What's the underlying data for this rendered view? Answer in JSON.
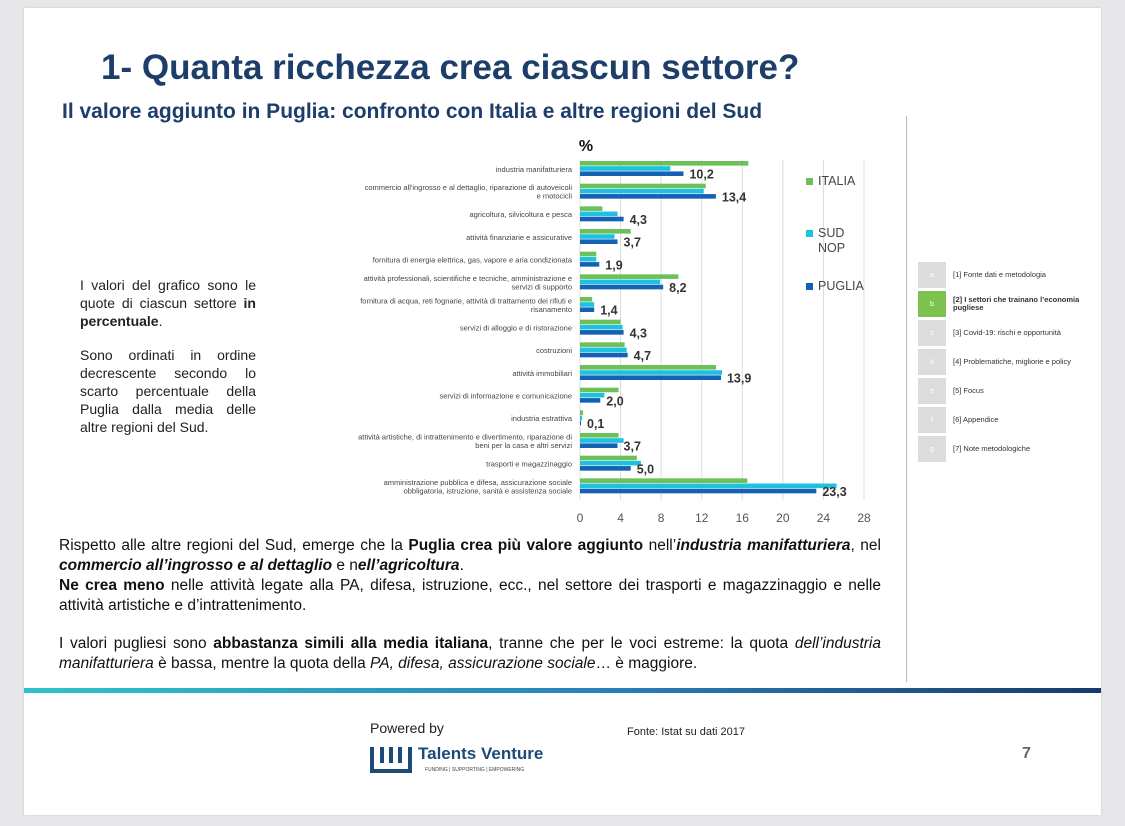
{
  "header": {
    "title": "1- Quanta ricchezza crea ciascun settore?",
    "subtitle": "Il valore aggiunto in Puglia: confronto con Italia e altre regioni del Sud"
  },
  "side_note": {
    "p1_a": "I valori del grafico sono le quote di ciascun settore ",
    "p1_b": "in percentuale",
    "p1_c": ".",
    "p2": "Sono ordinati in ordine decrescente secondo lo scarto percentuale della Puglia dalla media delle altre regioni del Sud."
  },
  "chart_data": {
    "type": "bar",
    "orientation": "horizontal",
    "unit_label": "%",
    "categories": [
      [
        "industria manifatturiera"
      ],
      [
        "commercio all'ingrosso e al dettaglio, riparazione di autoveicoli",
        "e motocicli"
      ],
      [
        "agricoltura, silvicoltura e pesca"
      ],
      [
        "attività finanziarie e assicurative"
      ],
      [
        "fornitura di energia elettrica, gas, vapore e aria condizionata"
      ],
      [
        "attività professionali, scientifiche e tecniche, amministrazione e",
        "servizi di supporto"
      ],
      [
        "fornitura di acqua, reti fognarie, attività di trattamento dei rifiuti e",
        "risanamento"
      ],
      [
        "servizi di alloggio e di ristorazione"
      ],
      [
        "costruzioni"
      ],
      [
        "attività immobiliari"
      ],
      [
        "servizi di informazione e comunicazione"
      ],
      [
        "industria estrattiva"
      ],
      [
        "attività artistiche, di intrattenimento e divertimento, riparazione di",
        "beni per la casa e altri servizi"
      ],
      [
        "trasporti e magazzinaggio"
      ],
      [
        "amministrazione pubblica e difesa, assicurazione sociale",
        "obbligatoria, istruzione, sanità e assistenza sociale"
      ]
    ],
    "series": [
      {
        "name": "ITALIA",
        "color": "#6cc05a",
        "values": [
          16.6,
          12.4,
          2.2,
          5.0,
          1.6,
          9.7,
          1.2,
          4.0,
          4.4,
          13.4,
          3.8,
          0.3,
          3.8,
          5.6,
          16.5
        ]
      },
      {
        "name": "SUD NOP",
        "color": "#1fc1e0",
        "values": [
          8.9,
          12.2,
          3.7,
          3.4,
          1.6,
          7.9,
          1.4,
          4.2,
          4.6,
          14.0,
          2.4,
          0.2,
          4.3,
          6.0,
          25.3
        ]
      },
      {
        "name": "PUGLIA",
        "color": "#1561b5",
        "values": [
          10.2,
          13.4,
          4.3,
          3.7,
          1.9,
          8.2,
          1.4,
          4.3,
          4.7,
          13.9,
          2.0,
          0.1,
          3.7,
          5.0,
          23.3
        ]
      }
    ],
    "data_labels": [
      "10,2",
      "13,4",
      "4,3",
      "3,7",
      "1,9",
      "8,2",
      "1,4",
      "4,3",
      "4,7",
      "13,9",
      "2,0",
      "0,1",
      "3,7",
      "5,0",
      "23,3"
    ],
    "xlim": [
      0,
      28
    ],
    "xticks": [
      "0",
      "4",
      "8",
      "12",
      "16",
      "20",
      "24",
      "28"
    ],
    "grid": true,
    "legend_position": "right"
  },
  "body": {
    "p1_a": "Rispetto alle altre regioni del Sud, emerge che la ",
    "p1_b": "Puglia crea più valore aggiunto",
    "p1_c": " nell’",
    "p1_d": "industria manifatturiera",
    "p1_e": ", nel ",
    "p1_f": "commercio all’ingrosso e al dettaglio",
    "p1_g": " e n",
    "p1_h": "ell’agricoltura",
    "p1_i": ".",
    "p2_a": "Ne crea meno",
    "p2_b": " nelle attività legate alla PA, difesa, istruzione, ecc., nel settore dei trasporti e magazzinaggio e nelle attività artistiche e d’intrattenimento.",
    "p3_a": "I valori pugliesi sono ",
    "p3_b": "abbastanza simili alla media italiana",
    "p3_c": ", tranne che per le voci estreme: la quota ",
    "p3_d": "dell’industria manifatturiera",
    "p3_e": " è bassa, mentre la quota della ",
    "p3_f": "PA, difesa, assicurazione sociale",
    "p3_g": "… è maggiore."
  },
  "nav": {
    "items": [
      {
        "box": "a",
        "label": "[1] Fonte dati e metodologia"
      },
      {
        "box": "b",
        "label": "[2] I settori che trainano l’economia pugliese"
      },
      {
        "box": "c",
        "label": "[3] Covid-19: rischi e opportunità"
      },
      {
        "box": "d",
        "label": "[4] Problematiche, migliorie e policy"
      },
      {
        "box": "e",
        "label": "[5] Focus"
      },
      {
        "box": "f",
        "label": "[6] Appendice"
      },
      {
        "box": "g",
        "label": "[7] Note metodologiche"
      }
    ]
  },
  "footer": {
    "powered_by": "Powered by",
    "brand": "Talents Venture",
    "tagline": "FUNDING | SUPPORTING | EMPOWERING",
    "source": "Fonte: Istat su dati 2017",
    "page_number": "7"
  },
  "colors": {
    "title": "#1d3d6b",
    "accent_green": "#7cc24e"
  }
}
